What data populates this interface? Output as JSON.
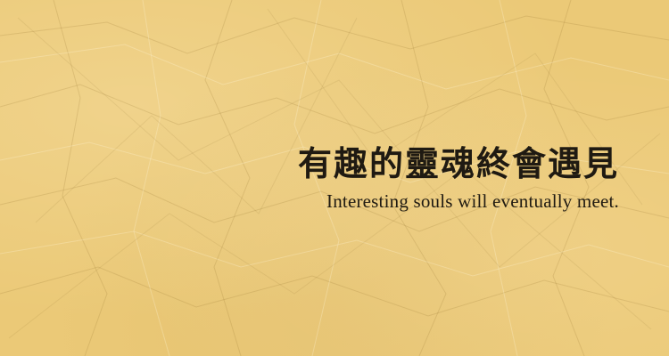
{
  "background": {
    "texture": "crumpled-paper",
    "color": "#ebc977"
  },
  "quote": {
    "chinese": "有趣的靈魂終會遇見",
    "english": "Interesting souls will eventually meet.",
    "text_color": "#1f1a12"
  }
}
